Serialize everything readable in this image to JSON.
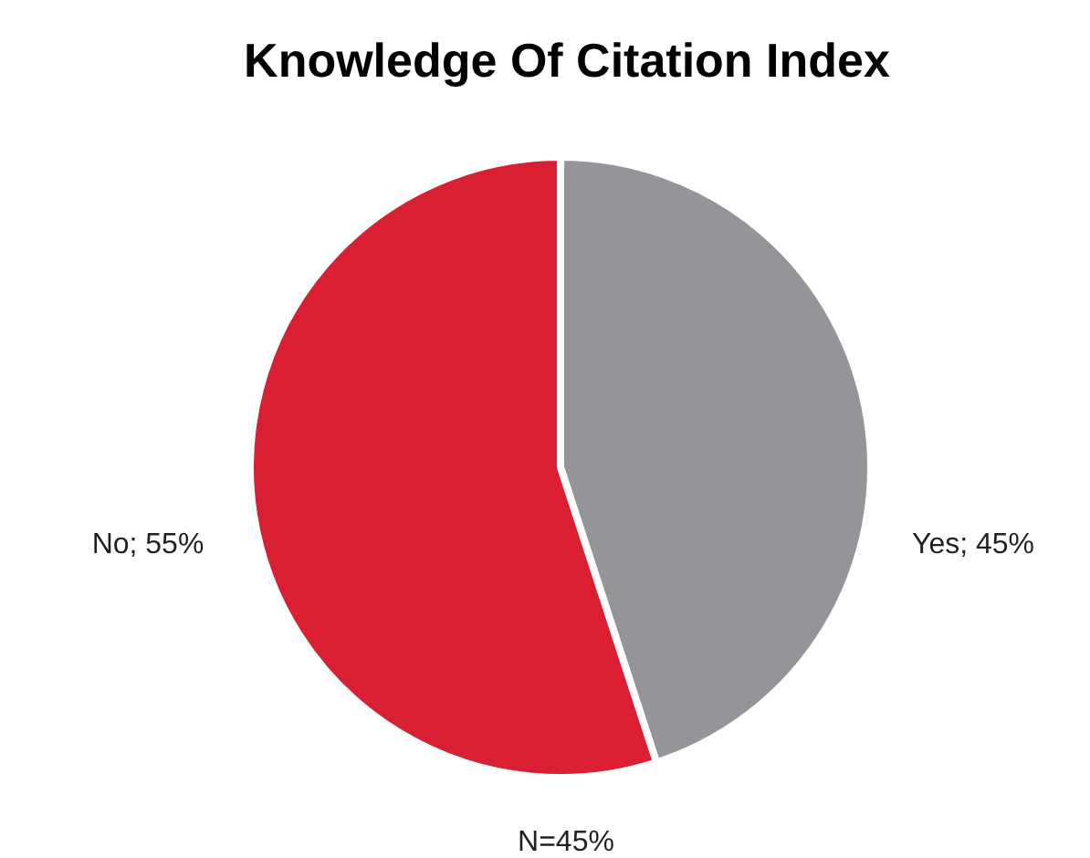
{
  "chart_data": {
    "type": "pie",
    "title": "Knowledge Of Citation Index",
    "categories": [
      "Yes",
      "No"
    ],
    "values": [
      45,
      55
    ],
    "colors": [
      "#939598",
      "#da1f32"
    ],
    "value_labels": [
      "45%",
      "55%"
    ],
    "annotations": [
      "N=45%"
    ],
    "legend": false
  }
}
